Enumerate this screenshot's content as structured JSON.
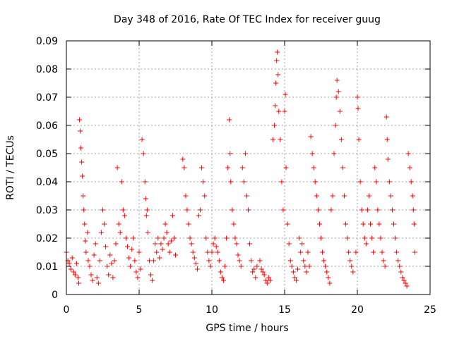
{
  "chart_data": {
    "type": "scatter",
    "title": "Day 348 of 2016, Rate Of TEC Index for receiver guug",
    "xlabel": "GPS time / hours",
    "ylabel": "ROTI / TECUs",
    "xlim": [
      0,
      25
    ],
    "ylim": [
      0,
      0.09
    ],
    "xticks": [
      0,
      5,
      10,
      15,
      20,
      25
    ],
    "yticks": [
      0,
      0.01,
      0.02,
      0.03,
      0.04,
      0.05,
      0.06,
      0.07,
      0.08,
      0.09
    ],
    "xtick_labels": [
      "0",
      "5",
      "10",
      "15",
      "20",
      "25"
    ],
    "ytick_labels": [
      "0",
      "0.01",
      "0.02",
      "0.03",
      "0.04",
      "0.05",
      "0.06",
      "0.07",
      "0.08",
      "0.09"
    ],
    "grid": true,
    "marker": "+",
    "marker_color": "#ff0000",
    "legend": "none",
    "series": [
      {
        "points": [
          [
            0.0,
            0.015
          ],
          [
            0.1,
            0.012
          ],
          [
            0.2,
            0.011
          ],
          [
            0.3,
            0.009
          ],
          [
            0.4,
            0.013
          ],
          [
            0.5,
            0.008
          ],
          [
            0.6,
            0.007
          ],
          [
            0.7,
            0.011
          ],
          [
            0.8,
            0.006
          ],
          [
            0.85,
            0.004
          ],
          [
            0.9,
            0.062
          ],
          [
            0.95,
            0.058
          ],
          [
            1.0,
            0.052
          ],
          [
            1.05,
            0.047
          ],
          [
            1.1,
            0.042
          ],
          [
            1.15,
            0.035
          ],
          [
            1.2,
            0.03
          ],
          [
            1.25,
            0.025
          ],
          [
            1.3,
            0.019
          ],
          [
            1.35,
            0.015
          ],
          [
            1.45,
            0.022
          ],
          [
            1.5,
            0.012
          ],
          [
            1.6,
            0.01
          ],
          [
            1.7,
            0.007
          ],
          [
            1.8,
            0.005
          ],
          [
            1.9,
            0.014
          ],
          [
            2.0,
            0.018
          ],
          [
            2.1,
            0.006
          ],
          [
            2.2,
            0.004
          ],
          [
            2.3,
            0.012
          ],
          [
            2.4,
            0.022
          ],
          [
            2.5,
            0.03
          ],
          [
            2.6,
            0.025
          ],
          [
            2.7,
            0.017
          ],
          [
            2.8,
            0.01
          ],
          [
            2.9,
            0.007
          ],
          [
            3.0,
            0.014
          ],
          [
            3.1,
            0.011
          ],
          [
            3.2,
            0.006
          ],
          [
            3.3,
            0.012
          ],
          [
            3.4,
            0.018
          ],
          [
            3.5,
            0.045
          ],
          [
            3.6,
            0.025
          ],
          [
            3.7,
            0.022
          ],
          [
            3.8,
            0.04
          ],
          [
            3.9,
            0.03
          ],
          [
            4.0,
            0.028
          ],
          [
            4.1,
            0.02
          ],
          [
            4.2,
            0.017
          ],
          [
            4.3,
            0.013
          ],
          [
            4.4,
            0.01
          ],
          [
            4.5,
            0.016
          ],
          [
            4.6,
            0.02
          ],
          [
            4.7,
            0.012
          ],
          [
            4.8,
            0.008
          ],
          [
            4.9,
            0.006
          ],
          [
            5.0,
            0.015
          ],
          [
            5.1,
            0.009
          ],
          [
            5.2,
            0.055
          ],
          [
            5.3,
            0.05
          ],
          [
            5.4,
            0.04
          ],
          [
            5.45,
            0.034
          ],
          [
            5.5,
            0.028
          ],
          [
            5.55,
            0.03
          ],
          [
            5.6,
            0.022
          ],
          [
            5.7,
            0.012
          ],
          [
            5.8,
            0.007
          ],
          [
            5.9,
            0.005
          ],
          [
            6.0,
            0.012
          ],
          [
            6.1,
            0.018
          ],
          [
            6.2,
            0.015
          ],
          [
            6.3,
            0.02
          ],
          [
            6.4,
            0.013
          ],
          [
            6.5,
            0.018
          ],
          [
            6.6,
            0.016
          ],
          [
            6.7,
            0.02
          ],
          [
            6.8,
            0.025
          ],
          [
            6.9,
            0.022
          ],
          [
            7.0,
            0.018
          ],
          [
            7.1,
            0.015
          ],
          [
            7.2,
            0.019
          ],
          [
            7.3,
            0.028
          ],
          [
            7.4,
            0.02
          ],
          [
            7.5,
            0.014
          ],
          [
            8.0,
            0.048
          ],
          [
            8.1,
            0.045
          ],
          [
            8.2,
            0.035
          ],
          [
            8.3,
            0.03
          ],
          [
            8.4,
            0.025
          ],
          [
            8.5,
            0.02
          ],
          [
            8.6,
            0.018
          ],
          [
            8.7,
            0.015
          ],
          [
            8.8,
            0.013
          ],
          [
            8.9,
            0.011
          ],
          [
            9.0,
            0.009
          ],
          [
            9.1,
            0.028
          ],
          [
            9.2,
            0.03
          ],
          [
            9.3,
            0.045
          ],
          [
            9.4,
            0.04
          ],
          [
            9.5,
            0.035
          ],
          [
            9.6,
            0.02
          ],
          [
            9.7,
            0.015
          ],
          [
            9.8,
            0.012
          ],
          [
            9.9,
            0.01
          ],
          [
            10.0,
            0.015
          ],
          [
            10.1,
            0.018
          ],
          [
            10.2,
            0.02
          ],
          [
            10.3,
            0.017
          ],
          [
            10.4,
            0.015
          ],
          [
            10.5,
            0.012
          ],
          [
            10.6,
            0.008
          ],
          [
            10.7,
            0.006
          ],
          [
            10.8,
            0.005
          ],
          [
            10.9,
            0.01
          ],
          [
            11.0,
            0.02
          ],
          [
            11.1,
            0.045
          ],
          [
            11.2,
            0.062
          ],
          [
            11.25,
            0.05
          ],
          [
            11.3,
            0.04
          ],
          [
            11.4,
            0.03
          ],
          [
            11.5,
            0.025
          ],
          [
            11.6,
            0.02
          ],
          [
            11.7,
            0.018
          ],
          [
            11.8,
            0.014
          ],
          [
            11.9,
            0.012
          ],
          [
            12.0,
            0.01
          ],
          [
            12.1,
            0.045
          ],
          [
            12.2,
            0.04
          ],
          [
            12.3,
            0.05
          ],
          [
            12.4,
            0.035
          ],
          [
            12.5,
            0.03
          ],
          [
            12.6,
            0.018
          ],
          [
            12.7,
            0.012
          ],
          [
            12.8,
            0.008
          ],
          [
            12.9,
            0.009
          ],
          [
            13.0,
            0.006
          ],
          [
            13.1,
            0.01
          ],
          [
            13.3,
            0.012
          ],
          [
            13.4,
            0.009
          ],
          [
            13.5,
            0.008
          ],
          [
            13.6,
            0.007
          ],
          [
            13.7,
            0.005
          ],
          [
            13.8,
            0.004
          ],
          [
            13.9,
            0.006
          ],
          [
            14.0,
            0.005
          ],
          [
            14.2,
            0.055
          ],
          [
            14.3,
            0.06
          ],
          [
            14.35,
            0.067
          ],
          [
            14.4,
            0.075
          ],
          [
            14.45,
            0.083
          ],
          [
            14.5,
            0.086
          ],
          [
            14.55,
            0.078
          ],
          [
            14.6,
            0.065
          ],
          [
            14.7,
            0.055
          ],
          [
            14.8,
            0.04
          ],
          [
            14.9,
            0.03
          ],
          [
            15.0,
            0.065
          ],
          [
            15.05,
            0.071
          ],
          [
            15.1,
            0.045
          ],
          [
            15.2,
            0.025
          ],
          [
            15.3,
            0.018
          ],
          [
            15.4,
            0.012
          ],
          [
            15.5,
            0.01
          ],
          [
            15.6,
            0.008
          ],
          [
            15.7,
            0.006
          ],
          [
            15.8,
            0.005
          ],
          [
            15.9,
            0.009
          ],
          [
            16.0,
            0.02
          ],
          [
            16.1,
            0.015
          ],
          [
            16.2,
            0.018
          ],
          [
            16.3,
            0.012
          ],
          [
            16.4,
            0.01
          ],
          [
            16.5,
            0.008
          ],
          [
            16.6,
            0.015
          ],
          [
            16.7,
            0.01
          ],
          [
            16.8,
            0.056
          ],
          [
            16.9,
            0.05
          ],
          [
            17.0,
            0.045
          ],
          [
            17.1,
            0.04
          ],
          [
            17.2,
            0.035
          ],
          [
            17.3,
            0.03
          ],
          [
            17.4,
            0.025
          ],
          [
            17.5,
            0.02
          ],
          [
            17.6,
            0.015
          ],
          [
            17.7,
            0.012
          ],
          [
            17.8,
            0.01
          ],
          [
            17.9,
            0.008
          ],
          [
            18.0,
            0.006
          ],
          [
            18.1,
            0.004
          ],
          [
            18.2,
            0.03
          ],
          [
            18.3,
            0.035
          ],
          [
            18.4,
            0.05
          ],
          [
            18.5,
            0.06
          ],
          [
            18.55,
            0.07
          ],
          [
            18.6,
            0.076
          ],
          [
            18.7,
            0.072
          ],
          [
            18.8,
            0.065
          ],
          [
            18.9,
            0.055
          ],
          [
            19.0,
            0.045
          ],
          [
            19.1,
            0.035
          ],
          [
            19.2,
            0.025
          ],
          [
            19.3,
            0.02
          ],
          [
            19.4,
            0.015
          ],
          [
            19.5,
            0.012
          ],
          [
            19.6,
            0.01
          ],
          [
            19.7,
            0.008
          ],
          [
            19.9,
            0.015
          ],
          [
            20.0,
            0.07
          ],
          [
            20.05,
            0.066
          ],
          [
            20.1,
            0.055
          ],
          [
            20.2,
            0.04
          ],
          [
            20.3,
            0.03
          ],
          [
            20.4,
            0.025
          ],
          [
            20.5,
            0.02
          ],
          [
            20.6,
            0.018
          ],
          [
            20.7,
            0.03
          ],
          [
            20.8,
            0.035
          ],
          [
            20.9,
            0.025
          ],
          [
            21.0,
            0.02
          ],
          [
            21.1,
            0.015
          ],
          [
            21.2,
            0.045
          ],
          [
            21.3,
            0.04
          ],
          [
            21.4,
            0.03
          ],
          [
            21.5,
            0.025
          ],
          [
            21.6,
            0.02
          ],
          [
            21.7,
            0.015
          ],
          [
            21.8,
            0.012
          ],
          [
            21.9,
            0.01
          ],
          [
            22.0,
            0.063
          ],
          [
            22.05,
            0.055
          ],
          [
            22.1,
            0.048
          ],
          [
            22.2,
            0.04
          ],
          [
            22.3,
            0.035
          ],
          [
            22.4,
            0.03
          ],
          [
            22.5,
            0.025
          ],
          [
            22.6,
            0.02
          ],
          [
            22.7,
            0.015
          ],
          [
            22.8,
            0.012
          ],
          [
            22.9,
            0.01
          ],
          [
            23.0,
            0.008
          ],
          [
            23.1,
            0.006
          ],
          [
            23.2,
            0.005
          ],
          [
            23.3,
            0.004
          ],
          [
            23.4,
            0.003
          ],
          [
            23.5,
            0.05
          ],
          [
            23.6,
            0.045
          ],
          [
            23.7,
            0.04
          ],
          [
            23.8,
            0.035
          ],
          [
            23.85,
            0.03
          ],
          [
            23.9,
            0.025
          ],
          [
            23.95,
            0.015
          ]
        ]
      }
    ]
  }
}
